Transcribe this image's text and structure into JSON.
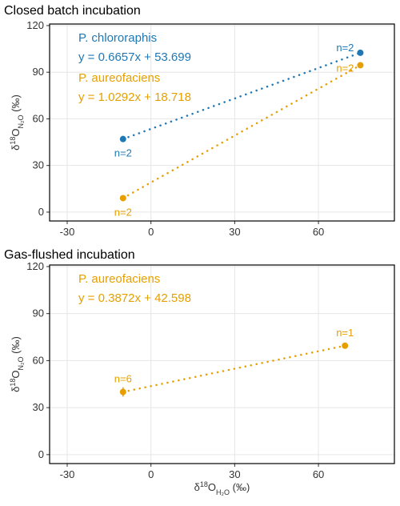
{
  "chart_data": [
    {
      "type": "scatter",
      "title": "Closed batch incubation",
      "ylabel": [
        {
          "text": "δ"
        },
        {
          "text": "18",
          "shift": "super"
        },
        {
          "text": "O"
        },
        {
          "text": "N₂O",
          "shift": "sub"
        },
        {
          "text": " (‰)"
        }
      ],
      "xlim": [
        -36.3,
        87.2
      ],
      "xticks": [
        -30,
        0,
        30,
        60
      ],
      "ylim": [
        -5.7,
        121
      ],
      "yticks": [
        0,
        30,
        60,
        90,
        120
      ],
      "grid": true,
      "series": [
        {
          "name": "P. chlororaphis",
          "equation": "y = 0.6657x + 53.699",
          "color": "#1f78b4",
          "x": [
            -10,
            75
          ],
          "values": [
            47,
            102.5
          ],
          "point_labels": [
            "n=2",
            "n=2"
          ],
          "point_label_positions": [
            "below",
            "above-left"
          ]
        },
        {
          "name": "P. aureofaciens",
          "equation": "y = 1.0292x + 18.718",
          "color": "#e69f00",
          "x": [
            -10,
            75
          ],
          "values": [
            9,
            94.5
          ],
          "point_labels": [
            "n=2",
            "n=2"
          ],
          "point_label_positions": [
            "below",
            "below-left"
          ]
        }
      ]
    },
    {
      "type": "scatter",
      "title": "Gas-flushed incubation",
      "ylabel": [
        {
          "text": "δ"
        },
        {
          "text": "18",
          "shift": "super"
        },
        {
          "text": "O"
        },
        {
          "text": "N₂O",
          "shift": "sub"
        },
        {
          "text": " (‰)"
        }
      ],
      "xlabel": [
        {
          "text": "δ"
        },
        {
          "text": "18",
          "shift": "super"
        },
        {
          "text": "O"
        },
        {
          "text": "H₂O",
          "shift": "sub"
        },
        {
          "text": " (‰)"
        }
      ],
      "xlim": [
        -36.3,
        87.2
      ],
      "xticks": [
        -30,
        0,
        30,
        60
      ],
      "ylim": [
        -5.7,
        121
      ],
      "yticks": [
        0,
        30,
        60,
        90,
        120
      ],
      "grid": true,
      "series": [
        {
          "name": "P. aureofaciens",
          "equation": "y = 0.3872x + 42.598",
          "color": "#e69f00",
          "x": [
            -10,
            69.5
          ],
          "values": [
            40,
            69.5
          ],
          "errors": [
            3,
            null
          ],
          "point_labels": [
            "n=6",
            "n=1"
          ],
          "point_label_positions": [
            "above",
            "above"
          ]
        }
      ]
    }
  ]
}
